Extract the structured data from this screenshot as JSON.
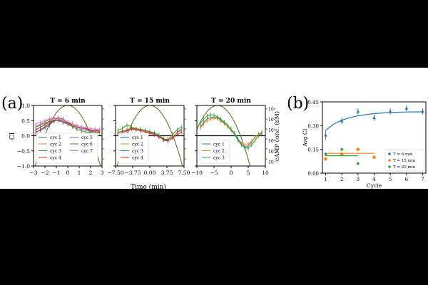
{
  "figure": {
    "panel_labels": [
      "(a)",
      "(b)"
    ],
    "shared_xlabel": "Time (min)",
    "shared_ylabel": "CI",
    "right_ylabel": "cAMP conc. (nM)"
  },
  "colors": {
    "c1": "#1f77b4",
    "c2": "#ff7f0e",
    "c3": "#2ca02c",
    "c4": "#d62728",
    "c5": "#9467bd",
    "c6": "#8c564b",
    "c7": "#e377c2",
    "camp": "#556b1a"
  },
  "chart_data": [
    {
      "type": "line",
      "title": "T = 6 min",
      "xlim": [
        -3,
        3
      ],
      "ylim": [
        -1.0,
        1.0
      ],
      "xticks": [
        "−3",
        "−2",
        "−1",
        "0",
        "1",
        "2",
        "3"
      ],
      "xtick_values": [
        -3,
        -2,
        -1,
        0,
        1,
        2,
        3
      ],
      "yticks": [
        "−1.0",
        "−0.5",
        "0.0",
        "0.5",
        "1.0"
      ],
      "ytick_values": [
        -1.0,
        -0.5,
        0.0,
        0.5,
        1.0
      ],
      "legend": [
        "cyc 1",
        "cyc 2",
        "cyc 3",
        "cyc 4",
        "cyc 5",
        "cyc 6",
        "cyc 7"
      ],
      "x": [
        -2.8,
        -2.4,
        -2.0,
        -1.6,
        -1.2,
        -0.8,
        -0.4,
        0.0,
        0.4,
        0.8,
        1.2,
        1.6,
        2.0,
        2.4,
        2.8
      ],
      "series": [
        {
          "name": "cyc 1",
          "values": [
            0.12,
            0.18,
            0.26,
            0.35,
            0.5,
            0.6,
            0.55,
            0.45,
            0.35,
            0.28,
            0.22,
            0.18,
            0.15,
            0.12,
            0.12
          ]
        },
        {
          "name": "cyc 2",
          "values": [
            0.18,
            0.28,
            0.38,
            0.48,
            0.58,
            0.6,
            0.52,
            0.42,
            0.32,
            0.22,
            0.16,
            0.12,
            0.1,
            0.12,
            0.14
          ]
        },
        {
          "name": "cyc 3",
          "values": [
            0.28,
            0.35,
            0.42,
            0.48,
            0.52,
            0.5,
            0.44,
            0.38,
            0.3,
            0.22,
            0.16,
            0.12,
            0.1,
            0.08,
            0.1
          ]
        },
        {
          "name": "cyc 4",
          "values": [
            0.1,
            0.2,
            0.3,
            0.4,
            0.48,
            0.52,
            0.48,
            0.42,
            0.36,
            0.3,
            0.26,
            0.22,
            0.18,
            0.16,
            0.16
          ]
        },
        {
          "name": "cyc 5",
          "values": [
            0.3,
            0.38,
            0.46,
            0.54,
            0.58,
            0.55,
            0.48,
            0.4,
            0.34,
            0.28,
            0.22,
            0.18,
            0.16,
            0.16,
            0.18
          ]
        },
        {
          "name": "cyc 6",
          "values": [
            0.2,
            0.28,
            0.36,
            0.44,
            0.5,
            0.5,
            0.45,
            0.4,
            0.35,
            0.3,
            0.26,
            0.24,
            0.2,
            0.18,
            0.18
          ]
        },
        {
          "name": "cyc 7",
          "values": [
            0.38,
            0.44,
            0.5,
            0.56,
            0.6,
            0.58,
            0.52,
            0.46,
            0.4,
            0.34,
            0.3,
            0.26,
            0.24,
            0.22,
            0.22
          ]
        }
      ],
      "camp_curve": {
        "type": "parabola",
        "peak_x": 0,
        "peak_ci": 1.0,
        "half_width": 3.0
      }
    },
    {
      "type": "line",
      "title": "T = 15 min",
      "xlim": [
        -7.5,
        7.5
      ],
      "ylim": [
        -1.0,
        1.0
      ],
      "xticks": [
        "−7.50",
        "−3.75",
        "0.00",
        "3.75",
        "7.50"
      ],
      "xtick_values": [
        -7.5,
        -3.75,
        0,
        3.75,
        7.5
      ],
      "legend": [
        "cyc 1",
        "cyc 2",
        "cyc 3",
        "cyc 4"
      ],
      "x": [
        -7.0,
        -6.0,
        -5.0,
        -4.0,
        -3.0,
        -2.0,
        -1.0,
        0.0,
        1.0,
        2.0,
        3.0,
        4.0,
        5.0,
        6.0,
        7.0
      ],
      "series": [
        {
          "name": "cyc 1",
          "values": [
            0.1,
            0.14,
            0.18,
            0.24,
            0.22,
            0.18,
            0.16,
            0.12,
            0.08,
            0.0,
            -0.15,
            -0.18,
            -0.05,
            0.12,
            0.22
          ]
        },
        {
          "name": "cyc 2",
          "values": [
            0.12,
            0.16,
            0.2,
            0.26,
            0.24,
            0.2,
            0.15,
            0.1,
            0.05,
            -0.05,
            -0.1,
            -0.12,
            -0.02,
            0.1,
            0.18
          ]
        },
        {
          "name": "cyc 3",
          "values": [
            0.18,
            0.24,
            0.35,
            0.3,
            0.22,
            0.22,
            0.18,
            0.14,
            0.1,
            0.02,
            -0.1,
            -0.14,
            0.05,
            0.2,
            0.3
          ]
        },
        {
          "name": "cyc 4",
          "values": [
            0.05,
            0.1,
            0.16,
            0.22,
            0.2,
            0.16,
            0.12,
            0.08,
            0.04,
            -0.04,
            -0.12,
            -0.16,
            -0.08,
            0.04,
            0.12
          ]
        }
      ],
      "camp_curve": {
        "type": "parabola",
        "peak_x": 0,
        "peak_ci": 1.0,
        "half_width": 7.5
      }
    },
    {
      "type": "line",
      "title": "T = 20 min",
      "xlim": [
        -10,
        10
      ],
      "ylim": [
        -1.0,
        1.0
      ],
      "xticks": [
        "−10",
        "−5",
        "0",
        "5",
        "10"
      ],
      "xtick_values": [
        -10,
        -5,
        0,
        5,
        10
      ],
      "right_yticks": [
        "10⁻²",
        "10⁻¹",
        "10⁰",
        "10¹",
        "10²",
        "10³"
      ],
      "right_ytick_ci": [
        -0.85,
        -0.5,
        -0.15,
        0.2,
        0.55,
        0.9
      ],
      "legend": [
        "cyc 1",
        "cyc 2",
        "cyc 3"
      ],
      "x": [
        -9.0,
        -8.0,
        -7.0,
        -6.0,
        -5.0,
        -4.0,
        -3.0,
        -2.0,
        -1.0,
        0.0,
        1.0,
        2.0,
        3.0,
        4.0,
        5.0,
        6.0,
        7.0,
        8.0,
        9.0
      ],
      "series": [
        {
          "name": "cyc 1",
          "values": [
            0.3,
            0.45,
            0.55,
            0.6,
            0.62,
            0.6,
            0.52,
            0.42,
            0.3,
            0.18,
            0.05,
            -0.15,
            -0.3,
            -0.38,
            -0.35,
            -0.2,
            -0.05,
            0.05,
            0.1
          ]
        },
        {
          "name": "cyc 2",
          "values": [
            0.25,
            0.4,
            0.5,
            0.55,
            0.58,
            0.56,
            0.48,
            0.4,
            0.3,
            0.2,
            0.08,
            -0.1,
            -0.25,
            -0.32,
            -0.28,
            -0.18,
            -0.05,
            0.05,
            0.12
          ]
        },
        {
          "name": "cyc 3",
          "values": [
            0.4,
            0.55,
            0.65,
            0.7,
            0.68,
            0.62,
            0.55,
            0.45,
            0.35,
            0.22,
            0.08,
            -0.1,
            -0.28,
            -0.4,
            -0.42,
            -0.3,
            -0.15,
            0.0,
            0.08
          ]
        }
      ],
      "camp_curve": {
        "type": "parabola",
        "peak_x": -4,
        "peak_ci": 1.0,
        "half_width": 10.0
      }
    },
    {
      "type": "scatter",
      "xlabel": "Cycle",
      "ylabel": "Avg CI",
      "xlim": [
        0.8,
        7.2
      ],
      "ylim": [
        0.0,
        0.45
      ],
      "xticks": [
        "1",
        "2",
        "3",
        "4",
        "5",
        "6",
        "7"
      ],
      "xtick_values": [
        1,
        2,
        3,
        4,
        5,
        6,
        7
      ],
      "yticks": [
        "0.00",
        "0.15",
        "0.30",
        "0.45"
      ],
      "ytick_values": [
        0.0,
        0.15,
        0.3,
        0.45
      ],
      "legend_position": "lower-right",
      "series": [
        {
          "name": "T = 6 min",
          "x": [
            1,
            2,
            3,
            4,
            5,
            6,
            7
          ],
          "values": [
            0.24,
            0.33,
            0.39,
            0.35,
            0.39,
            0.41,
            0.39
          ],
          "errors": [
            0.03,
            0.02,
            0.02,
            0.02,
            0.02,
            0.02,
            0.02
          ],
          "fit": {
            "x": [
              1,
              1.5,
              2,
              2.5,
              3,
              3.5,
              4,
              5,
              6,
              7
            ],
            "values": [
              0.27,
              0.31,
              0.335,
              0.35,
              0.362,
              0.37,
              0.376,
              0.383,
              0.386,
              0.387
            ]
          }
        },
        {
          "name": "T = 15 min",
          "x": [
            1,
            2,
            3,
            4
          ],
          "values": [
            0.09,
            0.12,
            0.15,
            0.1
          ],
          "errors": [
            0.01,
            0.01,
            0.01,
            0.01
          ],
          "fit": {
            "x": [
              1,
              4
            ],
            "values": [
              0.125,
              0.125
            ]
          }
        },
        {
          "name": "T = 20 min",
          "x": [
            1,
            2,
            3
          ],
          "values": [
            0.12,
            0.15,
            0.06
          ],
          "errors": [
            0.01,
            0.01,
            0.01
          ],
          "fit": {
            "x": [
              1,
              3
            ],
            "values": [
              0.11,
              0.11
            ]
          }
        }
      ]
    }
  ]
}
